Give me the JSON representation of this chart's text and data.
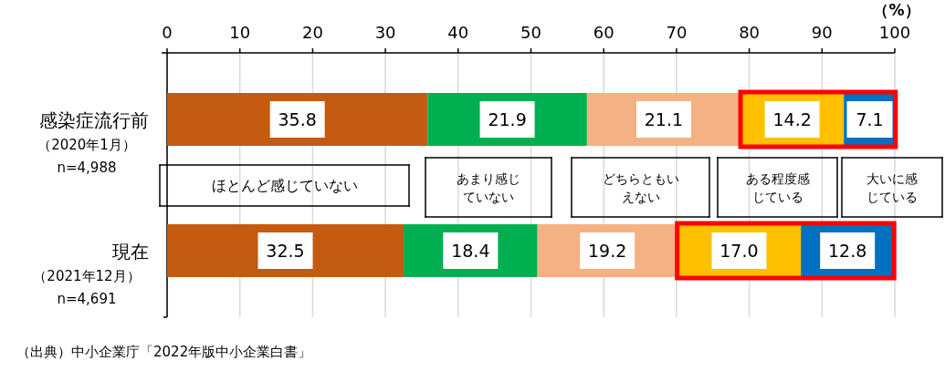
{
  "chart_data": {
    "type": "bar",
    "orientation": "horizontal",
    "stacked": true,
    "categories": [
      "感染症流行前",
      "現在"
    ],
    "series": [
      {
        "name": "ほとんど感じていない",
        "color": "#c55a11",
        "values": [
          35.8,
          32.5
        ],
        "value_labels": [
          "35.8",
          "32.5"
        ]
      },
      {
        "name": "あまり感じていない",
        "color": "#00b050",
        "values": [
          21.9,
          18.4
        ],
        "value_labels": [
          "21.9",
          "18.4"
        ]
      },
      {
        "name": "どちらともいえない",
        "color": "#f4b183",
        "values": [
          21.1,
          19.2
        ],
        "value_labels": [
          "21.1",
          "19.2"
        ]
      },
      {
        "name": "ある程度感じている",
        "color": "#ffc000",
        "values": [
          14.2,
          17.0
        ],
        "value_labels": [
          "14.2",
          "17.0"
        ]
      },
      {
        "name": "大いに感じている",
        "color": "#0070c0",
        "values": [
          7.1,
          12.8
        ],
        "value_labels": [
          "7.1",
          "12.8"
        ]
      }
    ],
    "xlim": [
      0,
      100
    ],
    "xticks": [
      0,
      10,
      20,
      30,
      40,
      50,
      60,
      70,
      80,
      90,
      100
    ],
    "xlabel": "（%）",
    "grid": "x",
    "legend": "center",
    "annotations": [
      "（2020年1月）",
      "n=4,988",
      "（2021年12月）",
      "n=4,691",
      "（出典）中小企業庁「2022年版中小企業白書」"
    ]
  }
}
